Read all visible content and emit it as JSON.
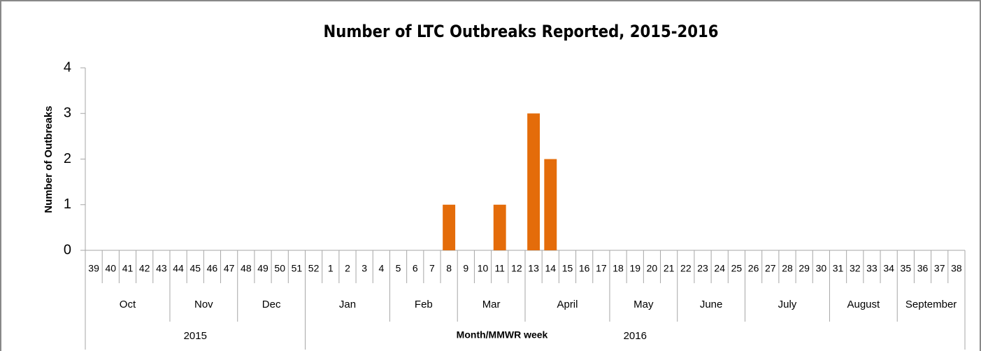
{
  "chart_data": {
    "type": "bar",
    "title": "Number of LTC Outbreaks Reported, 2015-2016",
    "y_label": "Number of Outbreaks",
    "x_label": "Month/MMWR week",
    "categories": [
      "39",
      "40",
      "41",
      "42",
      "43",
      "44",
      "45",
      "46",
      "47",
      "48",
      "49",
      "50",
      "51",
      "52",
      "1",
      "2",
      "3",
      "4",
      "5",
      "6",
      "7",
      "8",
      "9",
      "10",
      "11",
      "12",
      "13",
      "14",
      "15",
      "16",
      "17",
      "18",
      "19",
      "20",
      "21",
      "22",
      "23",
      "24",
      "25",
      "26",
      "27",
      "28",
      "29",
      "30",
      "31",
      "32",
      "33",
      "34",
      "35",
      "36",
      "37",
      "38"
    ],
    "values": [
      0,
      0,
      0,
      0,
      0,
      0,
      0,
      0,
      0,
      0,
      0,
      0,
      0,
      0,
      0,
      0,
      0,
      0,
      0,
      0,
      0,
      1,
      0,
      0,
      1,
      0,
      3,
      2,
      0,
      0,
      0,
      0,
      0,
      0,
      0,
      0,
      0,
      0,
      0,
      0,
      0,
      0,
      0,
      0,
      0,
      0,
      0,
      0,
      0,
      0,
      0,
      0
    ],
    "months": [
      {
        "label": "Oct",
        "count": 5
      },
      {
        "label": "Nov",
        "count": 4
      },
      {
        "label": "Dec",
        "count": 4
      },
      {
        "label": "Jan",
        "count": 5
      },
      {
        "label": "Feb",
        "count": 4
      },
      {
        "label": "Mar",
        "count": 4
      },
      {
        "label": "April",
        "count": 5
      },
      {
        "label": "May",
        "count": 4
      },
      {
        "label": "June",
        "count": 4
      },
      {
        "label": "July",
        "count": 5
      },
      {
        "label": "August",
        "count": 4
      },
      {
        "label": "September",
        "count": 4
      }
    ],
    "years": [
      {
        "label": "2015",
        "count": 13
      },
      {
        "label": "2016",
        "count": 39
      }
    ],
    "color": "#e46c0a",
    "ylim": [
      0,
      4
    ],
    "yticks": [
      0,
      1,
      2,
      3,
      4
    ],
    "grid": false
  }
}
